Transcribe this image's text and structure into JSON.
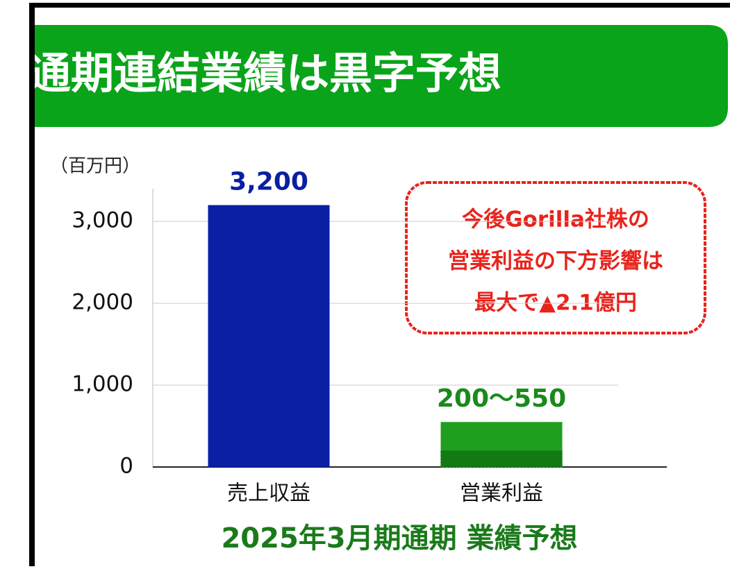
{
  "chart_data": {
    "type": "bar",
    "title": "通期連結業績は黒字予想",
    "unit_label": "（百万円）",
    "categories": [
      "売上収益",
      "営業利益"
    ],
    "values": [
      3200,
      [
        200,
        550
      ]
    ],
    "value_labels": [
      "3,200",
      "200〜550"
    ],
    "colors": [
      "#0a1fa3",
      "#1f9e1f"
    ],
    "range_low_color": "#137a13",
    "ylim": [
      0,
      3400
    ],
    "yticks": [
      0,
      {
        "value": 1000,
        "label": "1,000"
      },
      {
        "value": 2000,
        "label": "2,000"
      },
      {
        "value": 3000,
        "label": "3,000"
      }
    ],
    "grid": true,
    "annotation": [
      "今後Gorilla社株の",
      "営業利益の下方影響は",
      "最大で▲2.1億円"
    ],
    "footer": "2025年3月期通期 業績予想"
  }
}
